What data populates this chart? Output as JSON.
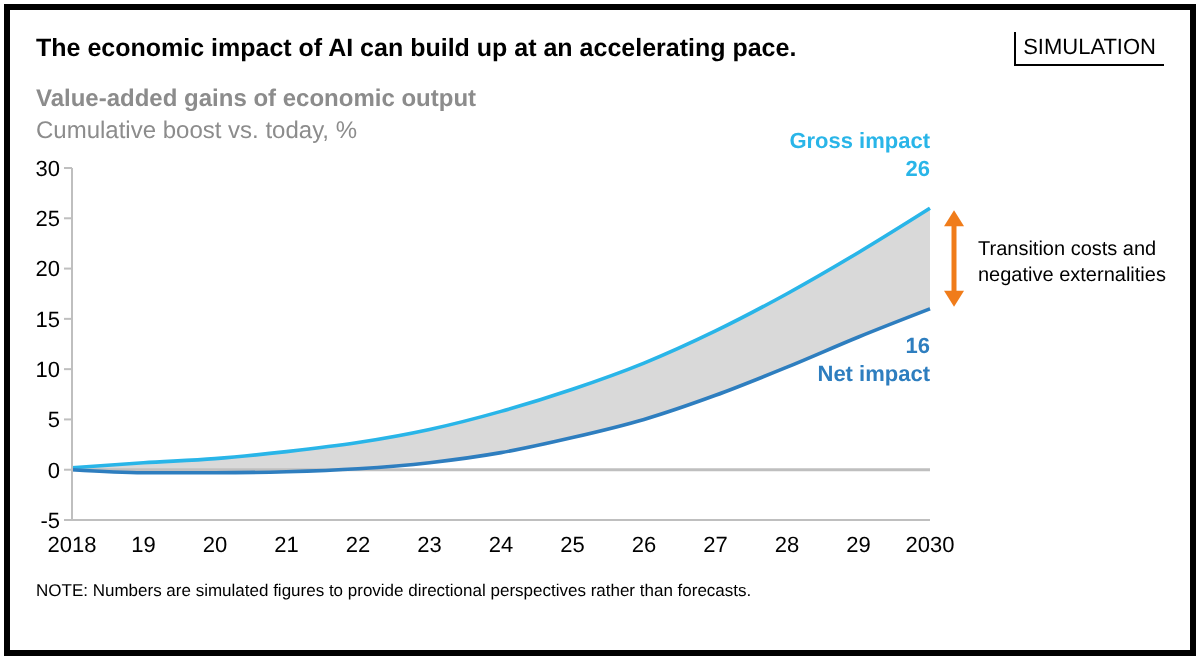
{
  "chart_data": {
    "type": "line",
    "title": "The economic impact of AI can build up at an accelerating pace.",
    "subtitle": "Value-added gains of economic output",
    "ylabel": "Cumulative boost vs. today, %",
    "categories": [
      "2018",
      "19",
      "20",
      "21",
      "22",
      "23",
      "24",
      "25",
      "26",
      "27",
      "28",
      "29",
      "2030"
    ],
    "series": [
      {
        "name": "Gross impact",
        "color": "#29b5e8",
        "values": [
          0.2,
          0.7,
          1.1,
          1.8,
          2.7,
          4.0,
          5.8,
          8.0,
          10.6,
          13.8,
          17.5,
          21.6,
          26
        ],
        "value_labels": [
          null,
          null,
          null,
          null,
          null,
          null,
          null,
          null,
          null,
          null,
          null,
          null,
          "26"
        ]
      },
      {
        "name": "Net impact",
        "color": "#2e7ebf",
        "values": [
          0,
          -0.3,
          -0.3,
          -0.2,
          0.1,
          0.7,
          1.7,
          3.2,
          5.0,
          7.4,
          10.2,
          13.2,
          16
        ],
        "value_labels": [
          null,
          null,
          null,
          null,
          null,
          null,
          null,
          null,
          null,
          null,
          null,
          null,
          "16"
        ],
        "lower": [
          0,
          -0.3,
          -0.3,
          -0.2,
          0.1,
          0.7,
          1.7,
          3.2,
          5.0,
          7.4,
          10.2,
          13.2,
          16
        ],
        "upper": [
          0.2,
          0.7,
          1.1,
          1.8,
          2.7,
          4.0,
          5.8,
          8.0,
          10.6,
          13.8,
          17.5,
          21.6,
          26
        ]
      }
    ],
    "ylim": [
      -5,
      30
    ],
    "yticks": [
      -5,
      0,
      5,
      10,
      15,
      20,
      25,
      30
    ],
    "ref_lines": [
      {
        "axis": "y",
        "value": 0,
        "color": "#bfbfbf"
      }
    ],
    "annotations": [
      "SIMULATION",
      {
        "text": "Transition costs and negative externalities",
        "x": "2030",
        "y": 21
      },
      "NOTE: Numbers are simulated figures to provide directional perspectives rather than forecasts."
    ],
    "grid": false,
    "legend": false,
    "marker": "none",
    "line_style": "solid"
  }
}
